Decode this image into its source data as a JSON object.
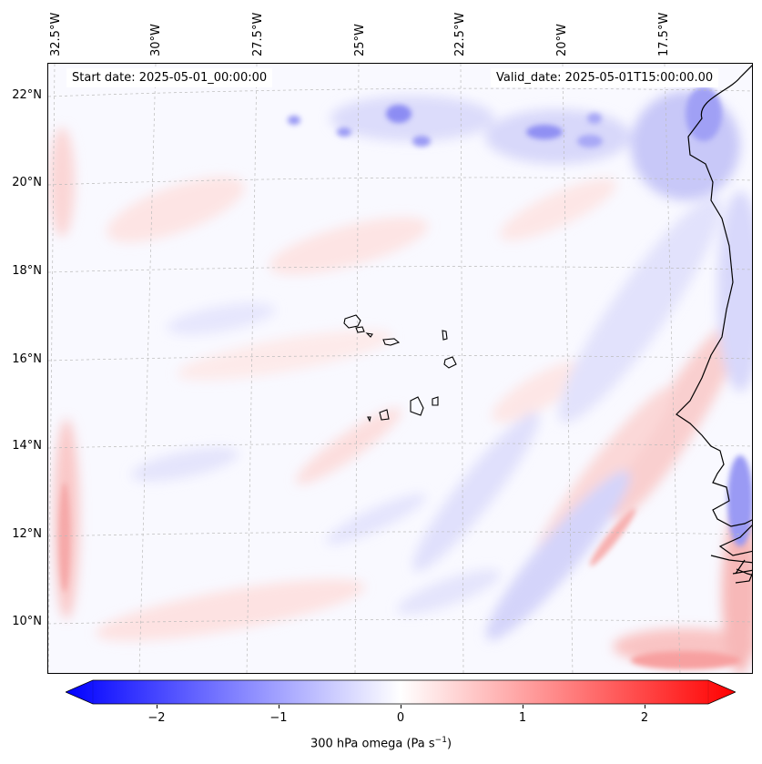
{
  "map": {
    "start_date": "Start date: 2025-05-01_00:00:00",
    "valid_date": "Valid_date: 2025-05-01T15:00:00.00",
    "lon_labels": [
      "32.5°W",
      "30°W",
      "27.5°W",
      "25°W",
      "22.5°W",
      "20°W",
      "17.5°W"
    ],
    "lat_labels": [
      "22°N",
      "20°N",
      "18°N",
      "16°N",
      "14°N",
      "12°N",
      "10°N"
    ],
    "variable": "300 hPa omega"
  },
  "colorbar": {
    "title_main": "300 hPa omega (Pa s",
    "title_sup": "−1",
    "title_end": ")",
    "ticks": [
      "−2",
      "−1",
      "0",
      "1",
      "2"
    ],
    "min": -2.7,
    "max": 2.7,
    "colors": {
      "negative": "#0000ff",
      "zero": "#ffffff",
      "positive": "#ff0000"
    },
    "extend": "both"
  },
  "colors": {
    "coast": "#000000",
    "grid": "#bbbbbb"
  }
}
